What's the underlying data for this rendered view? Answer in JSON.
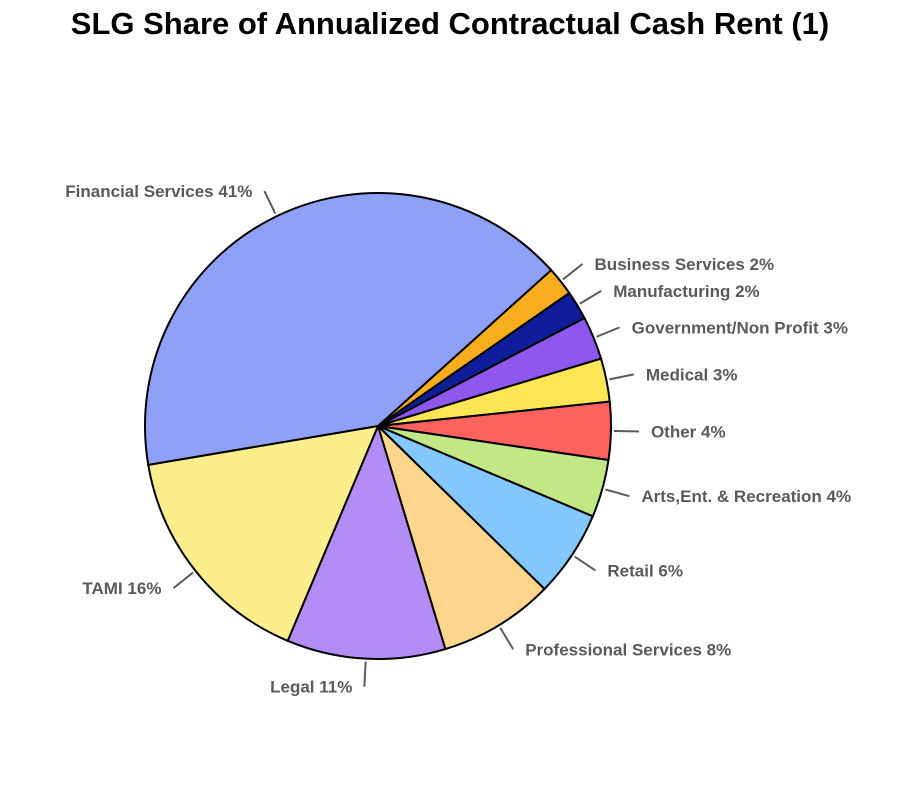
{
  "chart_data": {
    "type": "pie",
    "title": "SLG Share of Annualized Contractual Cash Rent (1)",
    "slices": [
      {
        "name": "Business Services",
        "value": 2,
        "label": "Business Services 2%",
        "color": "#F7AD1E"
      },
      {
        "name": "Manufacturing",
        "value": 2,
        "label": "Manufacturing 2%",
        "color": "#0F1D9A"
      },
      {
        "name": "Government/Non Profit",
        "value": 3,
        "label": "Government/Non Profit 3%",
        "color": "#8E57EE"
      },
      {
        "name": "Medical",
        "value": 3,
        "label": "Medical 3%",
        "color": "#FCE653"
      },
      {
        "name": "Other",
        "value": 4,
        "label": "Other 4%",
        "color": "#FD625E"
      },
      {
        "name": "Arts,Ent. & Recreation",
        "value": 4,
        "label": "Arts,Ent. & Recreation 4%",
        "color": "#C2E886"
      },
      {
        "name": "Retail",
        "value": 6,
        "label": "Retail 6%",
        "color": "#82C7FD"
      },
      {
        "name": "Professional Services",
        "value": 8,
        "label": "Professional Services 8%",
        "color": "#FDD58C"
      },
      {
        "name": "Legal",
        "value": 11,
        "label": "Legal 11%",
        "color": "#B38DF5"
      },
      {
        "name": "TAMI",
        "value": 16,
        "label": "TAMI 16%",
        "color": "#FDEE8C"
      },
      {
        "name": "Financial Services",
        "value": 41,
        "label": "Financial Services 41%",
        "color": "#8FA1F7"
      }
    ]
  }
}
